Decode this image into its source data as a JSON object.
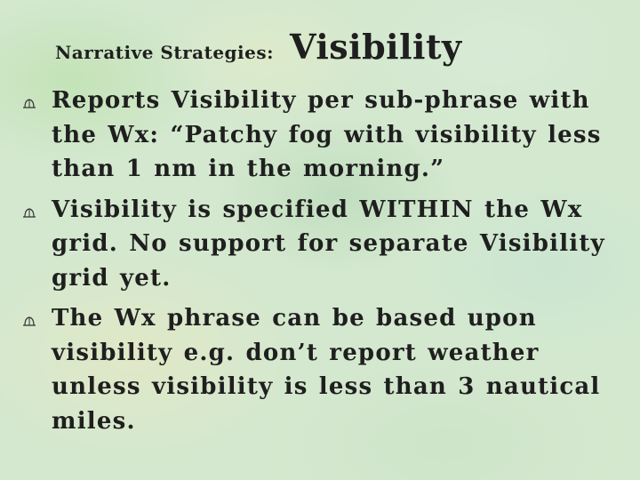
{
  "slide": {
    "title_prefix": "Narrative Strategies:",
    "title_main": "Visibility",
    "bullet_icon": "hat-icon",
    "bullets": [
      {
        "text": "Reports Visibility per sub-phrase with the Wx: “Patchy fog with visibility less than 1 nm in the morning.”"
      },
      {
        "text": "Visibility is specified WITHIN the Wx grid.  No support for separate Visibility grid yet."
      },
      {
        "text": "The Wx phrase can be based upon visibility e.g. don’t report weather unless visibility is less than 3 nautical miles."
      }
    ]
  }
}
